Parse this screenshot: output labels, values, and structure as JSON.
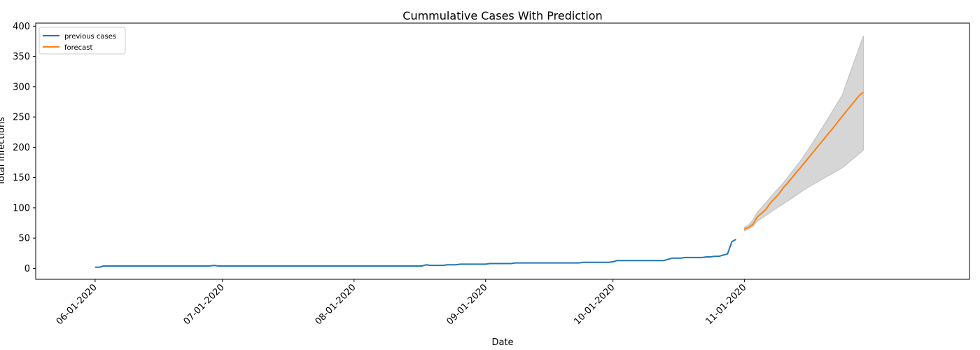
{
  "chart_data": {
    "type": "line",
    "title": "Cummulative Cases With Prediction",
    "xlabel": "Date",
    "ylabel": "Total Infections",
    "x_tick_labels": [
      "06-01-2020",
      "07-01-2020",
      "08-01-2020",
      "09-01-2020",
      "10-01-2020",
      "11-01-2020"
    ],
    "x_tick_dates": [
      "2020-06-01",
      "2020-07-01",
      "2020-08-01",
      "2020-09-01",
      "2020-10-01",
      "2020-11-01"
    ],
    "y_ticks": [
      0,
      50,
      100,
      150,
      200,
      250,
      300,
      350,
      400
    ],
    "xlim": [
      "2020-05-18",
      "2020-12-24"
    ],
    "ylim": [
      -18,
      405
    ],
    "grid": false,
    "legend_position": "top-left",
    "series": [
      {
        "name": "previous cases",
        "color": "#1f77b4",
        "points": [
          [
            "2020-06-01",
            2
          ],
          [
            "2020-06-02",
            2
          ],
          [
            "2020-06-03",
            4
          ],
          [
            "2020-06-28",
            4
          ],
          [
            "2020-06-29",
            5
          ],
          [
            "2020-06-30",
            4
          ],
          [
            "2020-08-17",
            4
          ],
          [
            "2020-08-18",
            6
          ],
          [
            "2020-08-19",
            5
          ],
          [
            "2020-08-22",
            5
          ],
          [
            "2020-08-23",
            6
          ],
          [
            "2020-08-25",
            6
          ],
          [
            "2020-08-26",
            7
          ],
          [
            "2020-09-01",
            7
          ],
          [
            "2020-09-02",
            8
          ],
          [
            "2020-09-07",
            8
          ],
          [
            "2020-09-08",
            9
          ],
          [
            "2020-09-23",
            9
          ],
          [
            "2020-09-24",
            10
          ],
          [
            "2020-09-30",
            10
          ],
          [
            "2020-10-01",
            11
          ],
          [
            "2020-10-02",
            13
          ],
          [
            "2020-10-13",
            13
          ],
          [
            "2020-10-15",
            17
          ],
          [
            "2020-10-17",
            17
          ],
          [
            "2020-10-18",
            18
          ],
          [
            "2020-10-22",
            18
          ],
          [
            "2020-10-23",
            19
          ],
          [
            "2020-10-24",
            19
          ],
          [
            "2020-10-25",
            20
          ],
          [
            "2020-10-26",
            20
          ],
          [
            "2020-10-28",
            24
          ],
          [
            "2020-10-29",
            44
          ],
          [
            "2020-10-30",
            48
          ]
        ]
      },
      {
        "name": "forecast",
        "color": "#ff7f0e",
        "points": [
          [
            "2020-11-01",
            65
          ],
          [
            "2020-11-02",
            68
          ],
          [
            "2020-11-03",
            73
          ],
          [
            "2020-11-04",
            85
          ],
          [
            "2020-11-05",
            91
          ],
          [
            "2020-11-06",
            97
          ],
          [
            "2020-11-07",
            107
          ],
          [
            "2020-11-08",
            115
          ],
          [
            "2020-11-09",
            122
          ],
          [
            "2020-11-10",
            132
          ],
          [
            "2020-11-11",
            140
          ],
          [
            "2020-11-12",
            148
          ],
          [
            "2020-11-13",
            157
          ],
          [
            "2020-11-14",
            165
          ],
          [
            "2020-11-16",
            182
          ],
          [
            "2020-11-18",
            199
          ],
          [
            "2020-11-20",
            216
          ],
          [
            "2020-11-22",
            233
          ],
          [
            "2020-11-24",
            251
          ],
          [
            "2020-11-26",
            268
          ],
          [
            "2020-11-28",
            285
          ],
          [
            "2020-11-29",
            291
          ]
        ]
      }
    ],
    "confidence_band": {
      "color": "#d6d6d6",
      "upper": [
        [
          "2020-11-01",
          68
        ],
        [
          "2020-11-02",
          72
        ],
        [
          "2020-11-03",
          80
        ],
        [
          "2020-11-04",
          93
        ],
        [
          "2020-11-06",
          108
        ],
        [
          "2020-11-08",
          125
        ],
        [
          "2020-11-10",
          140
        ],
        [
          "2020-11-12",
          158
        ],
        [
          "2020-11-14",
          176
        ],
        [
          "2020-11-16",
          196
        ],
        [
          "2020-11-20",
          240
        ],
        [
          "2020-11-24",
          286
        ],
        [
          "2020-11-29",
          384
        ]
      ],
      "lower": [
        [
          "2020-11-01",
          62
        ],
        [
          "2020-11-02",
          65
        ],
        [
          "2020-11-03",
          70
        ],
        [
          "2020-11-04",
          78
        ],
        [
          "2020-11-06",
          87
        ],
        [
          "2020-11-08",
          97
        ],
        [
          "2020-11-10",
          106
        ],
        [
          "2020-11-12",
          115
        ],
        [
          "2020-11-14",
          125
        ],
        [
          "2020-11-16",
          134
        ],
        [
          "2020-11-20",
          150
        ],
        [
          "2020-11-24",
          166
        ],
        [
          "2020-11-29",
          195
        ]
      ]
    }
  }
}
